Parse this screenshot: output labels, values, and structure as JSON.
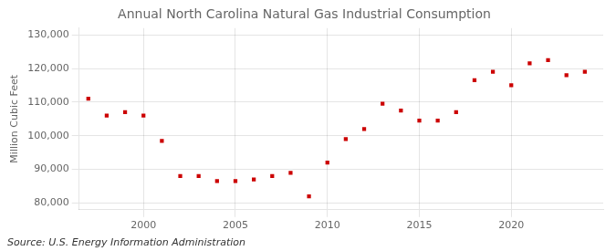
{
  "chart_data": {
    "type": "scatter",
    "title": "Annual North Carolina Natural Gas Industrial Consumption",
    "ylabel": "Million Cubic Feet",
    "annotation": "Source: U.S. Energy Information Administration",
    "x": [
      1997,
      1998,
      1999,
      2000,
      2001,
      2002,
      2003,
      2004,
      2005,
      2006,
      2007,
      2008,
      2009,
      2010,
      2011,
      2012,
      2013,
      2014,
      2015,
      2016,
      2017,
      2018,
      2019,
      2020,
      2021,
      2022,
      2023,
      2024
    ],
    "values": [
      111000,
      106000,
      107000,
      106000,
      98500,
      88000,
      88000,
      86500,
      86500,
      87000,
      88000,
      89000,
      82000,
      92000,
      99000,
      102000,
      109500,
      107500,
      104500,
      104500,
      107000,
      116500,
      119000,
      115000,
      121500,
      122500,
      118000,
      119000
    ],
    "color": "#cc0000",
    "marker": "square",
    "xlim": [
      1996.5,
      2025
    ],
    "xticks": [
      2000,
      2005,
      2010,
      2015,
      2020
    ],
    "ylim": [
      78000,
      132000
    ],
    "yticks": [
      {
        "value": 80000,
        "label": "80,000"
      },
      {
        "value": 90000,
        "label": "90,000"
      },
      {
        "value": 100000,
        "label": "100,000"
      },
      {
        "value": 110000,
        "label": "110,000"
      },
      {
        "value": 120000,
        "label": "120,000"
      },
      {
        "value": 130000,
        "label": "130,000"
      }
    ],
    "grid": true
  }
}
